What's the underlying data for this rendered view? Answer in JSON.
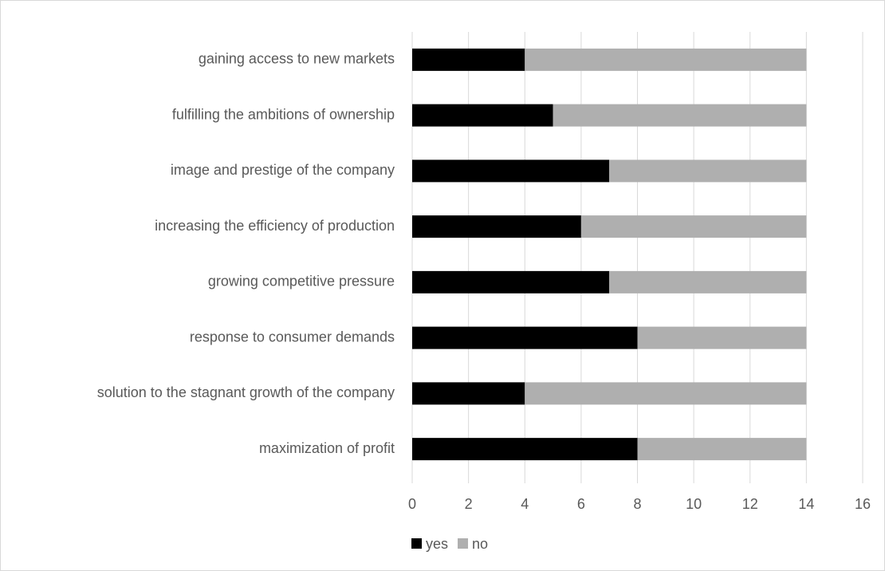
{
  "chart_data": {
    "type": "stacked-bar-horizontal",
    "categories": [
      "gaining access to new markets",
      "fulfilling the ambitions of ownership",
      "image and prestige of the company",
      "increasing the efficiency of production",
      "growing competitive pressure",
      "response to consumer demands",
      "solution to the stagnant growth of the company",
      "maximization of profit"
    ],
    "series": [
      {
        "name": "yes",
        "color": "#000000",
        "values": [
          4,
          5,
          7,
          6,
          7,
          8,
          4,
          8
        ]
      },
      {
        "name": "no",
        "color": "#afafaf",
        "values": [
          10,
          9,
          7,
          8,
          7,
          6,
          10,
          6
        ]
      }
    ],
    "xlim": [
      0,
      16
    ],
    "xticks": [
      0,
      2,
      4,
      6,
      8,
      10,
      12,
      14,
      16
    ],
    "grid": true,
    "legend": "bottom"
  }
}
